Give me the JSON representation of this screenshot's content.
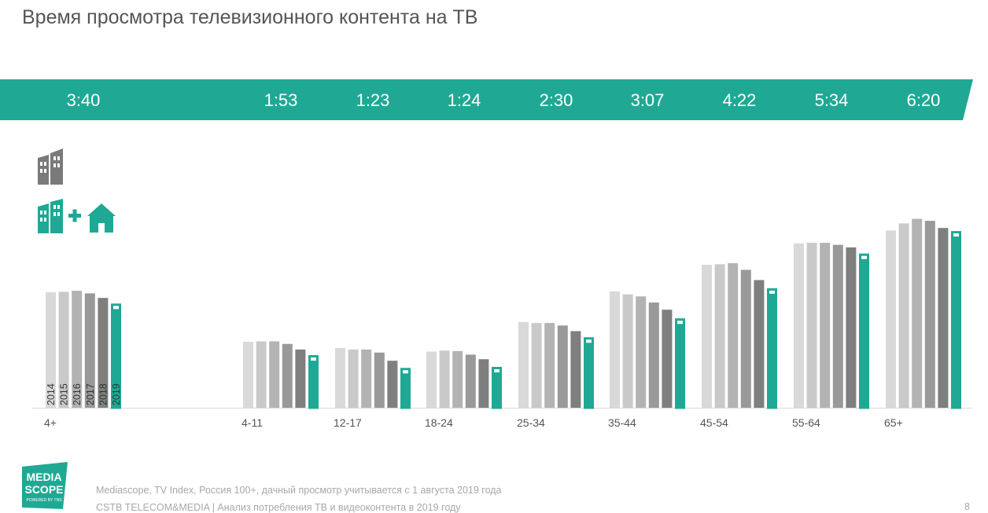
{
  "title": "Время просмотра телевизионного контента на ТВ",
  "band": {
    "values": [
      "3:40",
      "1:53",
      "1:23",
      "1:24",
      "2:30",
      "3:07",
      "4:22",
      "5:34",
      "6:20"
    ]
  },
  "legend": {
    "icons": [
      "building-tv-icon",
      "building-plus-home-icon"
    ]
  },
  "colors": {
    "band": "#1fa994",
    "teal": "#1fa994",
    "bars": [
      "#d9d9d9",
      "#c9c9c9",
      "#b3b3b3",
      "#999999",
      "#7f7f7f"
    ]
  },
  "chart_data": {
    "type": "bar",
    "categories": [
      "4+",
      "4-11",
      "12-17",
      "18-24",
      "25-34",
      "35-44",
      "45-54",
      "55-64",
      "65+"
    ],
    "series": [
      {
        "name": "2014",
        "values": [
          226,
          129,
          117,
          110,
          168,
          228,
          280,
          322,
          347
        ]
      },
      {
        "name": "2015",
        "values": [
          227,
          130,
          114,
          112,
          166,
          222,
          281,
          323,
          361
        ]
      },
      {
        "name": "2016",
        "values": [
          229,
          130,
          114,
          111,
          166,
          218,
          283,
          323,
          370
        ]
      },
      {
        "name": "2017",
        "values": [
          224,
          125,
          108,
          104,
          161,
          206,
          270,
          319,
          366
        ]
      },
      {
        "name": "2018",
        "values": [
          215,
          114,
          92,
          95,
          150,
          192,
          250,
          314,
          352
        ]
      },
      {
        "name": "2019",
        "values": [
          204,
          103,
          78,
          80,
          138,
          175,
          234,
          302,
          346
        ]
      }
    ],
    "year_labels_category": "4+",
    "ylim": [
      0,
      380
    ],
    "grid": false
  },
  "logo": {
    "line1": "MEDIA",
    "line2": "SCOPE",
    "tagline": "POWERED BY TNS"
  },
  "source": "Mediascope, TV Index, Россия 100+, дачный просмотр учитывается с 1 августа 2019 года",
  "footer": "CSTB TELECOM&MEDIA | Анализ потребления ТВ и видеоконтента в 2019 году",
  "page_number": "8"
}
